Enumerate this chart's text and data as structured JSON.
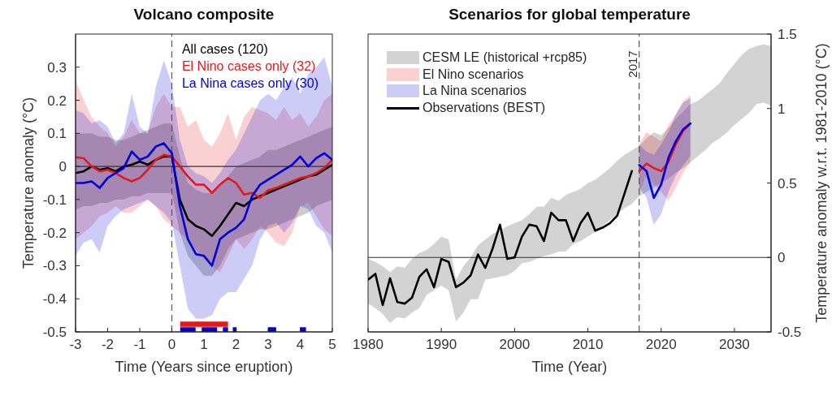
{
  "chart_data": [
    {
      "type": "line",
      "title": "Volcano composite",
      "xlabel": "Time (Years since eruption)",
      "ylabel": "Temperature anomaly (°C)",
      "x": [
        -3,
        -2.75,
        -2.5,
        -2.25,
        -2,
        -1.75,
        -1.5,
        -1.25,
        -1,
        -0.75,
        -0.5,
        -0.25,
        0,
        0.25,
        0.5,
        0.75,
        1,
        1.25,
        1.5,
        1.75,
        2,
        2.25,
        2.5,
        2.75,
        3,
        3.25,
        3.5,
        3.75,
        4,
        4.25,
        4.5,
        4.75,
        5
      ],
      "xlim": [
        -3,
        5
      ],
      "xticks": [
        -3,
        -2,
        -1,
        0,
        1,
        2,
        3,
        4,
        5
      ],
      "ylim": [
        -0.5,
        0.4
      ],
      "yticks": [
        -0.5,
        -0.4,
        -0.3,
        -0.2,
        -0.1,
        0,
        0.1,
        0.2,
        0.3
      ],
      "legend": "top right",
      "series": [
        {
          "name": "All cases (120)",
          "color": "#000000",
          "values": [
            -0.02,
            -0.015,
            0.0,
            -0.01,
            -0.005,
            -0.015,
            0.0,
            0.005,
            0.015,
            0.005,
            0.02,
            0.03,
            0.03,
            -0.1,
            -0.16,
            -0.18,
            -0.19,
            -0.21,
            -0.18,
            -0.145,
            -0.11,
            -0.12,
            -0.1,
            -0.09,
            -0.08,
            -0.07,
            -0.06,
            -0.05,
            -0.04,
            -0.03,
            -0.025,
            -0.01,
            0.005
          ],
          "lower": [
            -0.13,
            -0.12,
            -0.12,
            -0.11,
            -0.11,
            -0.1,
            -0.1,
            -0.09,
            -0.09,
            -0.08,
            -0.08,
            -0.08,
            -0.08,
            -0.2,
            -0.27,
            -0.3,
            -0.33,
            -0.33,
            -0.3,
            -0.25,
            -0.22,
            -0.21,
            -0.2,
            -0.19,
            -0.19,
            -0.18,
            -0.17,
            -0.16,
            -0.15,
            -0.14,
            -0.12,
            -0.11,
            -0.1
          ],
          "upper": [
            0.1,
            0.1,
            0.1,
            0.09,
            0.09,
            0.08,
            0.08,
            0.09,
            0.1,
            0.11,
            0.12,
            0.13,
            0.13,
            0.03,
            -0.05,
            -0.07,
            -0.08,
            -0.08,
            -0.06,
            -0.03,
            0.0,
            0.01,
            0.02,
            0.03,
            0.05,
            0.05,
            0.06,
            0.07,
            0.08,
            0.09,
            0.1,
            0.11,
            0.12
          ]
        },
        {
          "name": "El Nino cases only (32)",
          "color": "#e31a1c",
          "values": [
            0.028,
            0.025,
            0.0,
            -0.015,
            -0.01,
            -0.02,
            -0.035,
            -0.045,
            -0.035,
            -0.01,
            0.02,
            0.035,
            0.03,
            0.0,
            -0.03,
            -0.055,
            -0.055,
            -0.08,
            -0.055,
            -0.035,
            -0.05,
            -0.085,
            -0.08,
            -0.095,
            -0.072,
            -0.065,
            -0.055,
            -0.045,
            -0.035,
            -0.03,
            -0.02,
            -0.005,
            0.02
          ],
          "lower": [
            -0.22,
            -0.2,
            -0.18,
            -0.15,
            -0.14,
            -0.12,
            -0.14,
            -0.14,
            -0.12,
            -0.1,
            -0.12,
            -0.16,
            -0.18,
            -0.2,
            -0.22,
            -0.25,
            -0.28,
            -0.3,
            -0.32,
            -0.27,
            -0.22,
            -0.25,
            -0.22,
            -0.18,
            -0.2,
            -0.23,
            -0.24,
            -0.2,
            -0.12,
            -0.11,
            -0.15,
            -0.19,
            -0.21
          ],
          "upper": [
            0.26,
            0.2,
            0.15,
            0.12,
            0.1,
            0.06,
            0.09,
            0.14,
            0.1,
            0.1,
            0.18,
            0.22,
            0.18,
            0.18,
            0.12,
            0.14,
            0.08,
            0.06,
            0.1,
            0.16,
            0.08,
            0.15,
            0.18,
            0.17,
            0.16,
            0.14,
            0.18,
            0.14,
            0.16,
            0.12,
            0.15,
            0.2,
            0.22
          ]
        },
        {
          "name": "La Nina cases only (30)",
          "color": "#0000d8",
          "values": [
            -0.05,
            -0.05,
            -0.045,
            -0.065,
            -0.035,
            -0.02,
            -0.005,
            0.045,
            0.02,
            0.03,
            0.06,
            0.07,
            0.04,
            -0.12,
            -0.22,
            -0.265,
            -0.27,
            -0.3,
            -0.22,
            -0.2,
            -0.185,
            -0.16,
            -0.09,
            -0.055,
            -0.04,
            -0.025,
            -0.01,
            0.005,
            0.03,
            0.0,
            0.025,
            0.04,
            0.02
          ],
          "lower": [
            -0.27,
            -0.23,
            -0.22,
            -0.26,
            -0.18,
            -0.15,
            -0.13,
            -0.12,
            -0.11,
            -0.1,
            -0.12,
            -0.14,
            -0.17,
            -0.3,
            -0.43,
            -0.46,
            -0.46,
            -0.45,
            -0.4,
            -0.38,
            -0.38,
            -0.34,
            -0.3,
            -0.22,
            -0.18,
            -0.17,
            -0.2,
            -0.17,
            -0.12,
            -0.13,
            -0.18,
            -0.2,
            -0.26
          ],
          "upper": [
            0.17,
            0.16,
            0.13,
            0.14,
            0.12,
            0.07,
            0.1,
            0.22,
            0.12,
            0.1,
            0.24,
            0.32,
            0.25,
            0.08,
            0.0,
            -0.02,
            -0.03,
            -0.05,
            -0.02,
            0.02,
            0.05,
            0.1,
            0.15,
            0.2,
            0.22,
            0.2,
            0.24,
            0.27,
            0.22,
            0.28,
            0.3,
            0.33,
            0.24
          ]
        },
        {
          "color": "#0000d8",
          "x": [
            0.26,
            0.74,
            0.8,
            0.93,
            1.41,
            1.5,
            1.59,
            1.75,
            1.8,
            1.9,
            2.02,
            2.5,
            3.0,
            3.25,
            3.5,
            3.99,
            4.18
          ],
          "values": [
            -0.494,
            -0.494,
            null,
            -0.494,
            -0.494,
            null,
            -0.494,
            -0.494,
            null,
            -0.494,
            -0.494,
            null,
            -0.494,
            -0.494,
            null,
            -0.494,
            -0.494
          ]
        },
        {
          "color": "#e31a1c",
          "x": [
            0.26,
            1.75
          ],
          "values": [
            -0.477,
            -0.477
          ]
        }
      ],
      "ref_lines": [
        {
          "axis": "x",
          "value": 0,
          "line_style": "dashed",
          "color": "#555555"
        },
        {
          "axis": "y",
          "value": 0,
          "color": "#333333"
        }
      ]
    },
    {
      "type": "line",
      "title": "Scenarios for global temperature",
      "xlabel": "Time (Year)",
      "y2label": "Temperature anomaly w.r.t. 1981-2010 (°C)",
      "xlim": [
        1980,
        2035
      ],
      "xticks": [
        1980,
        1990,
        2000,
        2010,
        2020,
        2030
      ],
      "y2lim": [
        -0.5,
        1.5
      ],
      "y2ticks": [
        -0.5,
        0,
        0.5,
        1,
        1.5
      ],
      "legend": "top left",
      "series": [
        {
          "name": "CESM LE (historical +rcp85)",
          "color": "#d3d3d3",
          "axis": "y2",
          "x": [
            1980,
            1981,
            1982,
            1983,
            1984,
            1985,
            1986,
            1987,
            1988,
            1989,
            1990,
            1991,
            1992,
            1993,
            1994,
            1995,
            1996,
            1997,
            1998,
            1999,
            2000,
            2001,
            2002,
            2003,
            2004,
            2005,
            2006,
            2007,
            2008,
            2009,
            2010,
            2011,
            2012,
            2013,
            2014,
            2015,
            2016,
            2017,
            2018,
            2019,
            2020,
            2021,
            2022,
            2023,
            2024,
            2025,
            2026,
            2027,
            2028,
            2029,
            2030,
            2031,
            2032,
            2033,
            2034,
            2035
          ],
          "values": [
            null,
            null,
            null,
            null,
            null,
            null,
            null,
            null,
            null,
            null,
            null,
            null,
            null,
            null,
            null,
            null,
            null,
            null,
            null,
            null,
            null,
            null,
            null,
            null,
            null,
            null,
            null,
            null,
            null,
            null,
            null,
            null,
            null,
            null,
            null,
            null,
            null,
            null,
            null,
            null,
            null,
            null,
            null,
            null,
            null,
            null,
            null,
            null,
            null,
            null,
            null,
            null,
            null,
            null,
            null,
            null
          ],
          "lower": [
            -0.31,
            -0.34,
            -0.38,
            -0.44,
            -0.4,
            -0.41,
            -0.37,
            -0.34,
            -0.25,
            -0.22,
            -0.19,
            -0.22,
            -0.43,
            -0.37,
            -0.28,
            -0.28,
            -0.15,
            -0.14,
            -0.13,
            -0.12,
            -0.09,
            -0.04,
            -0.03,
            -0.01,
            0.01,
            0.02,
            0.04,
            0.04,
            0.09,
            0.11,
            0.14,
            0.17,
            0.21,
            0.25,
            0.29,
            0.33,
            0.36,
            0.41,
            0.44,
            0.47,
            0.5,
            0.53,
            0.57,
            0.6,
            0.64,
            0.68,
            0.72,
            0.77,
            0.8,
            0.84,
            0.89,
            0.93,
            0.97,
            1.03,
            1.04,
            1.02
          ],
          "upper": [
            -0.01,
            -0.03,
            -0.06,
            -0.1,
            -0.06,
            -0.07,
            -0.01,
            0.03,
            0.05,
            0.09,
            0.14,
            0.12,
            -0.15,
            -0.06,
            0.0,
            0.08,
            0.12,
            0.16,
            0.18,
            0.21,
            0.23,
            0.25,
            0.29,
            0.34,
            0.34,
            0.4,
            0.38,
            0.42,
            0.44,
            0.46,
            0.5,
            0.52,
            0.56,
            0.6,
            0.65,
            0.69,
            0.72,
            0.75,
            0.8,
            0.84,
            0.82,
            0.87,
            0.93,
            0.98,
            1.03,
            1.05,
            1.09,
            1.13,
            1.17,
            1.24,
            1.3,
            1.36,
            1.4,
            1.42,
            1.43,
            1.42
          ]
        },
        {
          "name": "El Nino scenarios",
          "color": "#e31a1c",
          "axis": "y2",
          "x": [
            2017,
            2018,
            2019,
            2020,
            2021,
            2022,
            2023,
            2024
          ],
          "values": [
            0.58,
            0.63,
            0.6,
            0.58,
            0.64,
            0.76,
            0.85,
            0.9
          ],
          "lower": [
            0.44,
            0.55,
            0.49,
            0.44,
            0.38,
            0.47,
            0.57,
            0.64
          ],
          "upper": [
            0.76,
            0.84,
            0.81,
            0.78,
            0.89,
            0.96,
            1.05,
            1.09
          ]
        },
        {
          "name": "La Nina scenarios",
          "color": "#0000d8",
          "axis": "y2",
          "x": [
            2017,
            2018,
            2019,
            2020,
            2021,
            2022,
            2023,
            2024
          ],
          "values": [
            0.62,
            0.58,
            0.4,
            0.49,
            0.67,
            0.78,
            0.86,
            0.9
          ],
          "lower": [
            0.47,
            0.4,
            0.22,
            0.29,
            0.44,
            0.55,
            0.62,
            0.68
          ],
          "upper": [
            0.76,
            0.71,
            0.69,
            0.76,
            0.84,
            0.96,
            1.04,
            1.07
          ]
        },
        {
          "name": "Observations (BEST)",
          "color": "#000000",
          "axis": "y2",
          "x": [
            1980,
            1981,
            1982,
            1983,
            1984,
            1985,
            1986,
            1987,
            1988,
            1989,
            1990,
            1991,
            1992,
            1993,
            1994,
            1995,
            1996,
            1997,
            1998,
            1999,
            2000,
            2001,
            2002,
            2003,
            2004,
            2005,
            2006,
            2007,
            2008,
            2009,
            2010,
            2011,
            2012,
            2013,
            2014,
            2015,
            2016
          ],
          "values": [
            -0.15,
            -0.11,
            -0.32,
            -0.14,
            -0.3,
            -0.31,
            -0.27,
            -0.13,
            -0.08,
            -0.2,
            -0.01,
            -0.03,
            -0.2,
            -0.17,
            -0.12,
            0.02,
            -0.07,
            0.06,
            0.22,
            -0.01,
            0.0,
            0.14,
            0.22,
            0.21,
            0.11,
            0.3,
            0.25,
            0.25,
            0.11,
            0.23,
            0.3,
            0.18,
            0.2,
            0.23,
            0.28,
            0.43,
            0.58
          ]
        }
      ],
      "ref_lines": [
        {
          "axis": "x",
          "value": 2017,
          "label": "2017",
          "line_style": "dashed",
          "color": "#555555"
        },
        {
          "axis": "y2",
          "value": 0,
          "color": "#333333"
        }
      ]
    }
  ]
}
